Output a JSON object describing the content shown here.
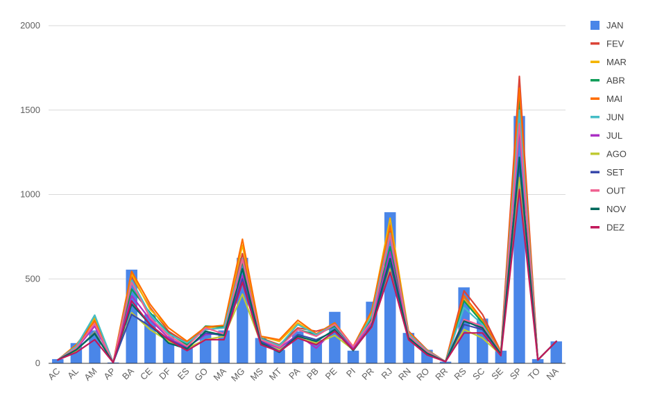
{
  "chart_data": {
    "type": "bar",
    "title": "",
    "xlabel": "",
    "ylabel": "",
    "ylim": [
      0,
      2000
    ],
    "yticks": [
      0,
      500,
      1000,
      1500,
      2000
    ],
    "grid": true,
    "legend_position": "right",
    "categories": [
      "AC",
      "AL",
      "AM",
      "AP",
      "BA",
      "CE",
      "DF",
      "ES",
      "GO",
      "MA",
      "MG",
      "MS",
      "MT",
      "PA",
      "PB",
      "PE",
      "PI",
      "PR",
      "RJ",
      "RN",
      "RO",
      "RR",
      "RS",
      "SC",
      "SE",
      "SP",
      "TO",
      "NA"
    ],
    "bar_series": {
      "name": "JAN",
      "color": "#4a86e8",
      "values": [
        25,
        120,
        195,
        5,
        555,
        290,
        160,
        120,
        175,
        195,
        625,
        150,
        80,
        190,
        140,
        305,
        75,
        365,
        895,
        180,
        80,
        10,
        450,
        265,
        75,
        1465,
        25,
        130
      ]
    },
    "series": [
      {
        "name": "FEV",
        "color": "#db4437",
        "values": [
          20,
          90,
          260,
          5,
          515,
          330,
          190,
          120,
          200,
          210,
          650,
          150,
          110,
          210,
          190,
          220,
          95,
          280,
          780,
          190,
          80,
          10,
          430,
          290,
          70,
          1700,
          20,
          130
        ]
      },
      {
        "name": "MAR",
        "color": "#f4b400",
        "values": [
          20,
          100,
          270,
          5,
          530,
          320,
          210,
          130,
          210,
          220,
          700,
          160,
          130,
          240,
          170,
          230,
          100,
          300,
          860,
          185,
          75,
          10,
          380,
          250,
          70,
          1580,
          20,
          130
        ]
      },
      {
        "name": "ABR",
        "color": "#0f9d58",
        "values": [
          20,
          95,
          285,
          5,
          440,
          300,
          180,
          110,
          220,
          215,
          600,
          150,
          100,
          200,
          170,
          220,
          95,
          260,
          690,
          170,
          70,
          10,
          370,
          240,
          60,
          1560,
          20,
          130
        ]
      },
      {
        "name": "MAI",
        "color": "#ff6d00",
        "values": [
          20,
          110,
          250,
          5,
          545,
          350,
          210,
          130,
          215,
          225,
          735,
          160,
          140,
          255,
          175,
          240,
          100,
          310,
          815,
          180,
          80,
          10,
          400,
          260,
          65,
          1630,
          20,
          130
        ]
      },
      {
        "name": "JUN",
        "color": "#46bdc6",
        "values": [
          20,
          100,
          285,
          5,
          490,
          290,
          175,
          120,
          200,
          210,
          620,
          145,
          105,
          230,
          170,
          230,
          95,
          280,
          770,
          175,
          75,
          10,
          330,
          230,
          60,
          1500,
          20,
          130
        ]
      },
      {
        "name": "JUL",
        "color": "#ab30c4",
        "values": [
          20,
          85,
          220,
          5,
          400,
          260,
          150,
          95,
          170,
          180,
          520,
          130,
          90,
          170,
          90,
          200,
          90,
          240,
          660,
          150,
          60,
          10,
          260,
          200,
          55,
          1390,
          20,
          130
        ]
      },
      {
        "name": "AGO",
        "color": "#c0ca33",
        "values": [
          20,
          75,
          185,
          5,
          300,
          200,
          130,
          90,
          140,
          160,
          410,
          120,
          80,
          150,
          120,
          165,
          80,
          220,
          560,
          140,
          60,
          10,
          200,
          150,
          50,
          1100,
          20,
          130
        ]
      },
      {
        "name": "SET",
        "color": "#3949ab",
        "values": [
          20,
          80,
          180,
          5,
          290,
          220,
          140,
          90,
          180,
          165,
          500,
          130,
          70,
          170,
          140,
          190,
          80,
          220,
          590,
          150,
          60,
          10,
          230,
          200,
          55,
          1180,
          20,
          130
        ]
      },
      {
        "name": "OUT",
        "color": "#f06292",
        "values": [
          20,
          90,
          235,
          5,
          480,
          270,
          165,
          100,
          210,
          175,
          615,
          140,
          95,
          200,
          160,
          230,
          100,
          250,
          760,
          165,
          70,
          10,
          260,
          220,
          60,
          1420,
          20,
          130
        ]
      },
      {
        "name": "NOV",
        "color": "#00695c",
        "values": [
          20,
          80,
          175,
          5,
          350,
          230,
          120,
          85,
          190,
          165,
          560,
          120,
          65,
          160,
          130,
          200,
          75,
          220,
          620,
          150,
          60,
          10,
          250,
          210,
          55,
          1220,
          20,
          130
        ]
      },
      {
        "name": "DEZ",
        "color": "#c2185b",
        "values": [
          20,
          65,
          140,
          5,
          370,
          230,
          140,
          75,
          140,
          140,
          480,
          110,
          70,
          150,
          110,
          190,
          80,
          215,
          540,
          140,
          50,
          10,
          180,
          180,
          45,
          1030,
          20,
          130
        ]
      }
    ]
  }
}
